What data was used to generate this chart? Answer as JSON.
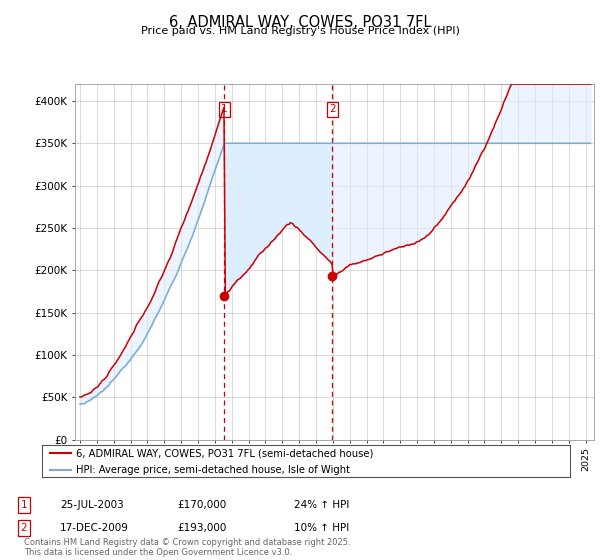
{
  "title": "6, ADMIRAL WAY, COWES, PO31 7FL",
  "subtitle": "Price paid vs. HM Land Registry's House Price Index (HPI)",
  "ylabel_ticks": [
    "£0",
    "£50K",
    "£100K",
    "£150K",
    "£200K",
    "£250K",
    "£300K",
    "£350K",
    "£400K"
  ],
  "ylim": [
    0,
    420000
  ],
  "xlim_start": 1994.7,
  "xlim_end": 2025.5,
  "transaction1_date": 2003.56,
  "transaction1_price": 170000,
  "transaction2_date": 2009.96,
  "transaction2_price": 193000,
  "legend_line1": "6, ADMIRAL WAY, COWES, PO31 7FL (semi-detached house)",
  "legend_line2": "HPI: Average price, semi-detached house, Isle of Wight",
  "table_row1": [
    "1",
    "25-JUL-2003",
    "£170,000",
    "24% ↑ HPI"
  ],
  "table_row2": [
    "2",
    "17-DEC-2009",
    "£193,000",
    "10% ↑ HPI"
  ],
  "footnote": "Contains HM Land Registry data © Crown copyright and database right 2025.\nThis data is licensed under the Open Government Licence v3.0.",
  "color_red": "#cc0000",
  "color_blue": "#7aaad0",
  "color_fill": "#ddeeff",
  "color_vline": "#cc0000",
  "background_color": "#ffffff"
}
